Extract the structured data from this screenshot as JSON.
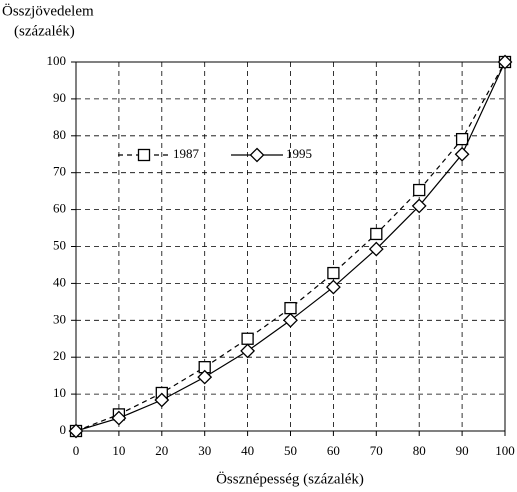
{
  "chart_data": {
    "type": "line",
    "ylabel": [
      "Összjövedelem",
      "(százalék)"
    ],
    "xlabel": "Össznépesség (százalék)",
    "x": [
      0,
      10,
      20,
      30,
      40,
      50,
      60,
      70,
      80,
      90,
      100
    ],
    "series": [
      {
        "name": "1987",
        "color": "#000000",
        "dashed": true,
        "marker": "square",
        "values": [
          0,
          4.5,
          10.3,
          17.3,
          25,
          33.3,
          42.8,
          53.4,
          65.3,
          79.1,
          100
        ]
      },
      {
        "name": "1995",
        "color": "#000000",
        "dashed": false,
        "marker": "diamond",
        "values": [
          0,
          3.5,
          8.4,
          14.6,
          21.7,
          30,
          39,
          49.3,
          61,
          75,
          100
        ]
      }
    ],
    "xlim": [
      0,
      100
    ],
    "xticks": [
      0,
      10,
      20,
      30,
      40,
      50,
      60,
      70,
      80,
      90,
      100
    ],
    "ylim": [
      0,
      100
    ],
    "yticks": [
      0,
      10,
      20,
      30,
      40,
      50,
      60,
      70,
      80,
      90,
      100
    ],
    "grid": true,
    "legend": "upper left"
  }
}
